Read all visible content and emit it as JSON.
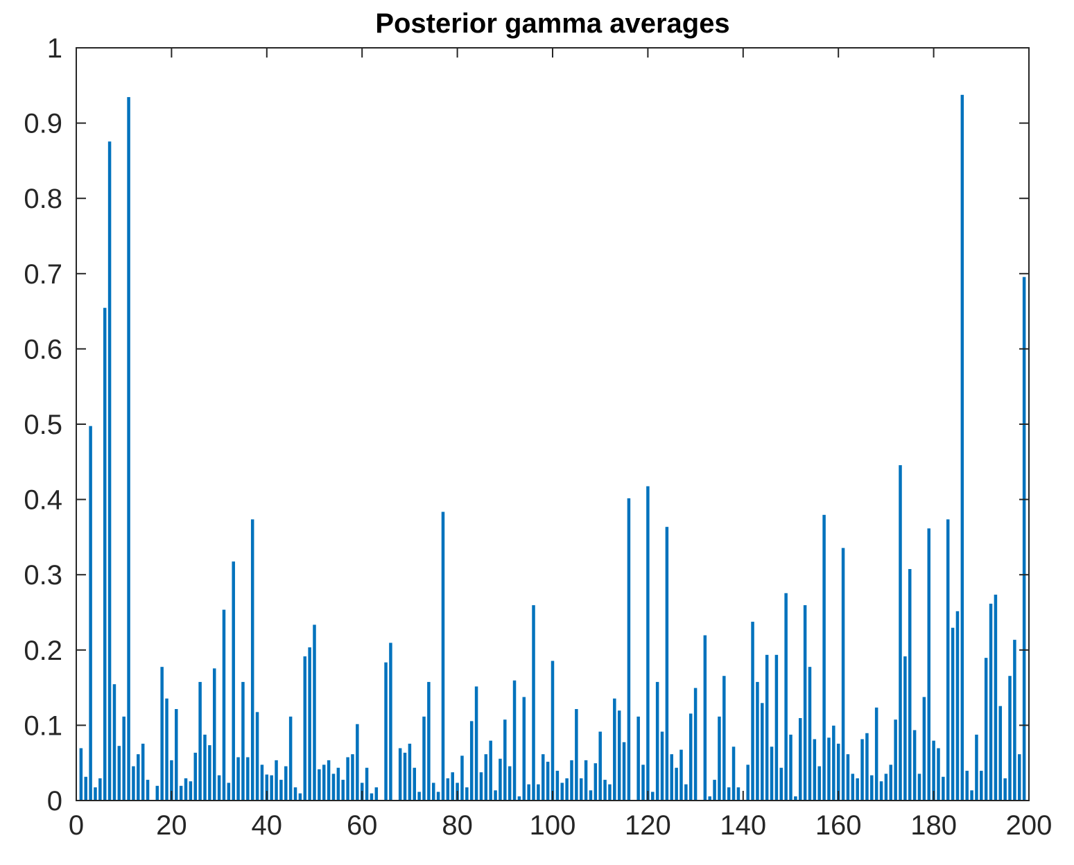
{
  "chart_data": {
    "type": "bar",
    "title": "Posterior gamma averages",
    "xlabel": "",
    "ylabel": "",
    "xlim": [
      0,
      200
    ],
    "ylim": [
      0,
      1
    ],
    "xticks": [
      0,
      20,
      40,
      60,
      80,
      100,
      120,
      140,
      160,
      180,
      200
    ],
    "yticks": [
      0,
      0.1,
      0.2,
      0.3,
      0.4,
      0.5,
      0.6,
      0.7,
      0.8,
      0.9,
      1
    ],
    "x_tick_labels": [
      "0",
      "20",
      "40",
      "60",
      "80",
      "100",
      "120",
      "140",
      "160",
      "180",
      "200"
    ],
    "y_tick_labels": [
      "0",
      "0.1",
      "0.2",
      "0.3",
      "0.4",
      "0.5",
      "0.6",
      "0.7",
      "0.8",
      "0.9",
      "1"
    ],
    "grid": false,
    "bar_color": "#0072BD",
    "values": [
      0.07,
      0.032,
      0.498,
      0.018,
      0.03,
      0.655,
      0.876,
      0.155,
      0.073,
      0.112,
      0.935,
      0.046,
      0.062,
      0.076,
      0.028,
      0,
      0.02,
      0.178,
      0.136,
      0.054,
      0.122,
      0.02,
      0.03,
      0.026,
      0.064,
      0.158,
      0.088,
      0.074,
      0.176,
      0.034,
      0.254,
      0.024,
      0.318,
      0.058,
      0.158,
      0.058,
      0.374,
      0.118,
      0.048,
      0.035,
      0.034,
      0.054,
      0.028,
      0.046,
      0.112,
      0.018,
      0.01,
      0.192,
      0.204,
      0.234,
      0.042,
      0.048,
      0.054,
      0.036,
      0.044,
      0.028,
      0.058,
      0.062,
      0.102,
      0.024,
      0.044,
      0.01,
      0.018,
      0,
      0.184,
      0.21,
      0,
      0.07,
      0.064,
      0.076,
      0.044,
      0.012,
      0.112,
      0.158,
      0.024,
      0.012,
      0.384,
      0.03,
      0.038,
      0.024,
      0.06,
      0.018,
      0.106,
      0.152,
      0.038,
      0.062,
      0.08,
      0.014,
      0.056,
      0.108,
      0.046,
      0.16,
      0.006,
      0.138,
      0.022,
      0.26,
      0.022,
      0.062,
      0.052,
      0.186,
      0.04,
      0.024,
      0.03,
      0.054,
      0.122,
      0.03,
      0.054,
      0.014,
      0.05,
      0.092,
      0.028,
      0.022,
      0.136,
      0.12,
      0.078,
      0.402,
      0,
      0.112,
      0.048,
      0.418,
      0.012,
      0.158,
      0.092,
      0.364,
      0.062,
      0.044,
      0.068,
      0.022,
      0.116,
      0.15,
      0,
      0.22,
      0.006,
      0.028,
      0.112,
      0.166,
      0.018,
      0.072,
      0.018,
      0,
      0.048,
      0.238,
      0.158,
      0.13,
      0.194,
      0.072,
      0.194,
      0.044,
      0.276,
      0.088,
      0.006,
      0.11,
      0.26,
      0.178,
      0.082,
      0.046,
      0.38,
      0.084,
      0.1,
      0.076,
      0.336,
      0.062,
      0.036,
      0.03,
      0.082,
      0.09,
      0.034,
      0.124,
      0.026,
      0.036,
      0.048,
      0.108,
      0.446,
      0.192,
      0.308,
      0.094,
      0.036,
      0.138,
      0.362,
      0.08,
      0.07,
      0.032,
      0.374,
      0.23,
      0.252,
      0.938,
      0.04,
      0.014,
      0.088,
      0.04,
      0.19,
      0.262,
      0.274,
      0.126,
      0.03,
      0.166,
      0.214,
      0.062,
      0.696,
      0
    ]
  }
}
